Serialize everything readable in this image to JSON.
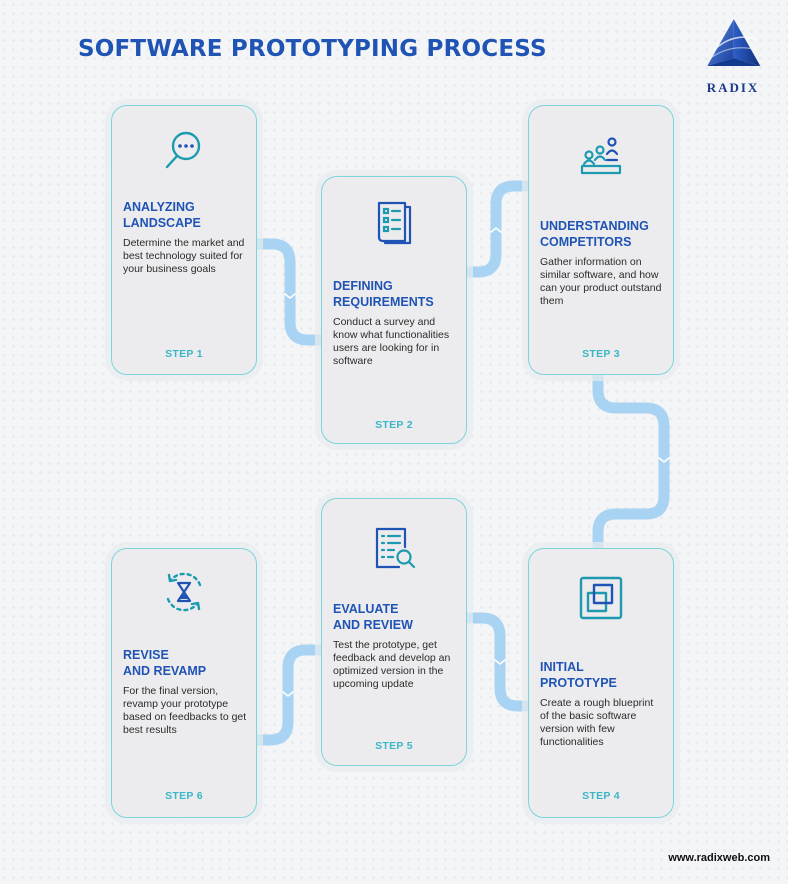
{
  "header": {
    "title": "SOFTWARE PROTOTYPING PROCESS"
  },
  "logo": {
    "text": "RADIX"
  },
  "colors": {
    "title": "#1f54b5",
    "accent": "#3bb6c6",
    "connector": "#a9d3f2",
    "card_border": "#7fd3da"
  },
  "steps": [
    {
      "title_line1": "ANALYZING",
      "title_line2": "LANDSCAPE",
      "description": "Determine the market and best technology suited for your business goals",
      "step_label": "STEP 1",
      "icon": "magnifier-chat-icon"
    },
    {
      "title_line1": "DEFINING",
      "title_line2": "REQUIREMENTS",
      "description": "Conduct a survey and know what functionalities users are looking for in software",
      "step_label": "STEP 2",
      "icon": "document-list-icon"
    },
    {
      "title_line1": "UNDERSTANDING",
      "title_line2": "COMPETITORS",
      "description": "Gather information on similar software, and how can your product outstand them",
      "step_label": "STEP 3",
      "icon": "competitors-podium-icon"
    },
    {
      "title_line1": "INITIAL",
      "title_line2": "PROTOTYPE",
      "description": "Create a rough blueprint of the basic software version with few functionalities",
      "step_label": "STEP 4",
      "icon": "prototype-layers-icon"
    },
    {
      "title_line1": "EVALUATE",
      "title_line2": "AND REVIEW",
      "description": "Test the prototype, get feedback and develop an optimized version in the upcoming update",
      "step_label": "STEP 5",
      "icon": "document-search-icon"
    },
    {
      "title_line1": "REVISE",
      "title_line2": "AND REVAMP",
      "description": "For the final version, revamp your prototype based on feedbacks to get best results",
      "step_label": "STEP 6",
      "icon": "hourglass-cycle-icon"
    }
  ],
  "footer": {
    "website": "www.radixweb.com"
  }
}
